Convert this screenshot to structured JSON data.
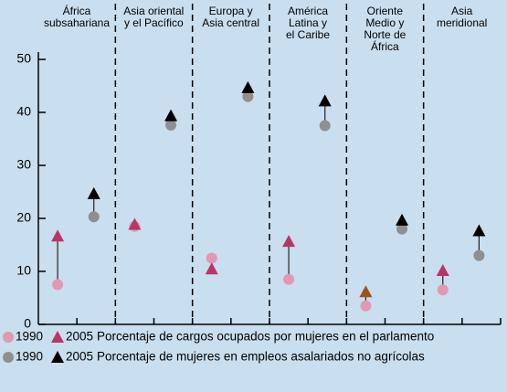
{
  "chart_data": {
    "type": "dumbbell",
    "categories": [
      "África\nsubsahariana",
      "Asia oriental\ny el Pacífico",
      "Europa y\nAsia central",
      "América\nLatina y\nel Caribe",
      "Oriente\nMedio y\nNorte de\nÁfrica",
      "Asia\nmeridional"
    ],
    "ylim": [
      0,
      55
    ],
    "yticks": [
      0,
      10,
      20,
      30,
      40,
      50
    ],
    "series": [
      {
        "name": "Porcentaje de cargos ocupados por mujeres en el parlamento",
        "start_label": "1990",
        "end_label": "2005",
        "start_color": "#e297b4",
        "end_color": "#b83469",
        "end_point_colors": [
          "#b83469",
          "#b83469",
          "#b83469",
          "#b83469",
          "#a0501e",
          "#b83469"
        ],
        "start_values": [
          7.5,
          18.5,
          12.5,
          8.5,
          3.5,
          6.5
        ],
        "end_values": [
          16.5,
          18.7,
          10.3,
          15.5,
          6,
          10
        ]
      },
      {
        "name": "Porcentaje de mujeres en empleos asalariados no agrícolas",
        "start_label": "1990",
        "end_label": "2005",
        "start_color": "#8f8f8f",
        "end_color": "#000000",
        "end_point_colors": [
          "#000000",
          "#000000",
          "#000000",
          "#000000",
          "#000000",
          "#000000"
        ],
        "start_values": [
          20.3,
          37.6,
          43,
          37.5,
          18,
          13
        ],
        "end_values": [
          24.5,
          39.2,
          44.5,
          42,
          19.5,
          17.5
        ]
      }
    ]
  }
}
